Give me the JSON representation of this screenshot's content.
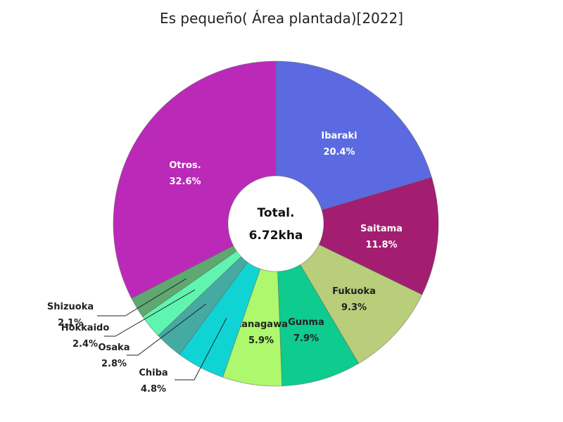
{
  "chart_data": {
    "type": "pie",
    "title": "Es pequeño( Área plantada)[2022]",
    "center_label": "Total.",
    "center_value": "6.72kha",
    "slices": [
      {
        "label": "Ibaraki",
        "pct_text": "20.4%",
        "value": 20.4,
        "color": "#5b6ae0",
        "text_color": "#ffffff"
      },
      {
        "label": "Saitama",
        "pct_text": "11.8%",
        "value": 11.8,
        "color": "#a31d70",
        "text_color": "#ffffff"
      },
      {
        "label": "Fukuoka",
        "pct_text": "9.3%",
        "value": 9.3,
        "color": "#b8ce7a",
        "text_color": "#222222"
      },
      {
        "label": "Gunma",
        "pct_text": "7.9%",
        "value": 7.9,
        "color": "#0ecb8e",
        "text_color": "#222222"
      },
      {
        "label": "Kanagawa",
        "pct_text": "5.9%",
        "value": 5.9,
        "color": "#adf86c",
        "text_color": "#222222"
      },
      {
        "label": "Chiba",
        "pct_text": "4.8%",
        "value": 4.8,
        "color": "#10d4d4",
        "text_color": "#222222"
      },
      {
        "label": "Osaka",
        "pct_text": "2.8%",
        "value": 2.8,
        "color": "#45aaa2",
        "text_color": "#222222"
      },
      {
        "label": "Hokkaido",
        "pct_text": "2.4%",
        "value": 2.4,
        "color": "#5ff5b0",
        "text_color": "#222222"
      },
      {
        "label": "Shizuoka",
        "pct_text": "2.1%",
        "value": 2.1,
        "color": "#5fa870",
        "text_color": "#222222"
      },
      {
        "label": "Otros.",
        "pct_text": "32.6%",
        "value": 32.6,
        "color": "#bb29b8",
        "text_color": "#ffffff"
      }
    ]
  }
}
